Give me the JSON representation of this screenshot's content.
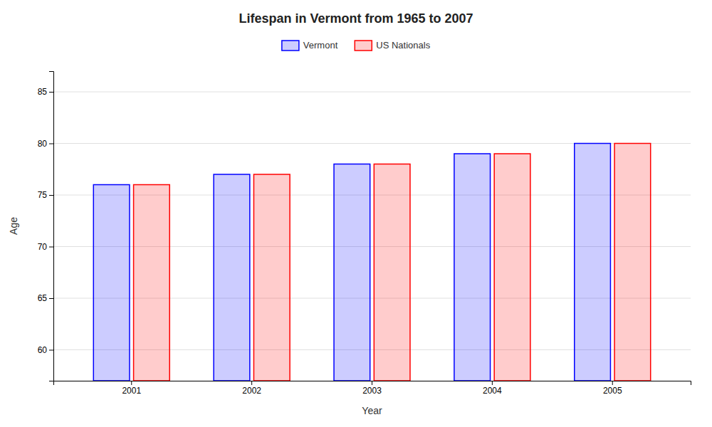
{
  "chart_data": {
    "type": "bar",
    "title": "Lifespan in Vermont from 1965 to 2007",
    "x_label": "Year",
    "y_label": "Age",
    "categories": [
      "2001",
      "2002",
      "2003",
      "2004",
      "2005"
    ],
    "series": [
      {
        "name": "Vermont",
        "color": "#0000ff",
        "values": [
          76,
          77,
          78,
          79,
          80
        ]
      },
      {
        "name": "US Nationals",
        "color": "#ff0000",
        "values": [
          76,
          77,
          78,
          79,
          80
        ]
      }
    ],
    "ylim": [
      57,
      87
    ],
    "yticks": [
      60,
      65,
      70,
      75,
      80,
      85
    ],
    "grid": true,
    "legend": "top"
  }
}
